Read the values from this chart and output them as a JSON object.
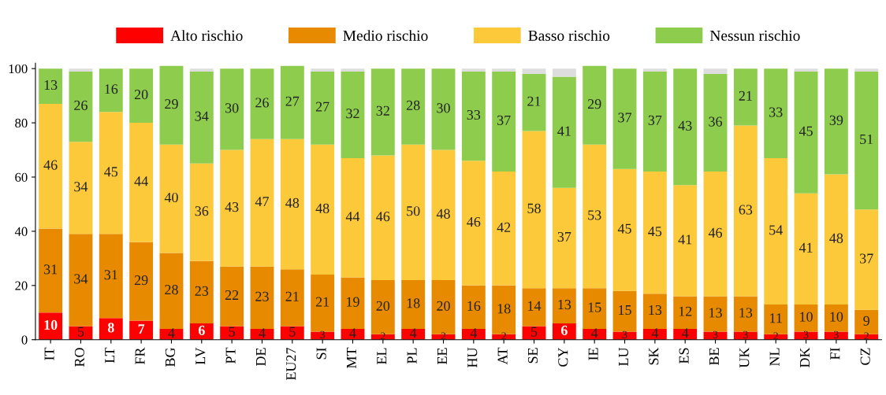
{
  "chart_data": {
    "type": "bar",
    "stacked": true,
    "data_labels": true,
    "legend": "top",
    "grid": false,
    "categories": [
      "IT",
      "RO",
      "LT",
      "FR",
      "BG",
      "LV",
      "PT",
      "DE",
      "EU27",
      "SI",
      "MT",
      "EL",
      "PL",
      "EE",
      "HU",
      "AT",
      "SE",
      "CY",
      "IE",
      "LU",
      "SK",
      "ES",
      "BE",
      "UK",
      "NL",
      "DK",
      "FI",
      "CZ"
    ],
    "ylim": [
      0,
      102
    ],
    "yticks": [
      0,
      20,
      40,
      60,
      80,
      100
    ],
    "series": [
      {
        "name": "Alto rischio",
        "color": "#ff0000",
        "values": [
          10,
          5,
          8,
          7,
          4,
          6,
          5,
          4,
          5,
          3,
          4,
          2,
          4,
          2,
          4,
          2,
          5,
          6,
          4,
          3,
          4,
          4,
          3,
          3,
          2,
          3,
          3,
          2
        ]
      },
      {
        "name": "Medio rischio",
        "color": "#e88a00",
        "values": [
          31,
          34,
          31,
          29,
          28,
          23,
          22,
          23,
          21,
          21,
          19,
          20,
          18,
          20,
          16,
          18,
          14,
          13,
          15,
          15,
          13,
          12,
          13,
          13,
          11,
          10,
          10,
          9
        ]
      },
      {
        "name": "Basso rischio",
        "color": "#fcc93a",
        "values": [
          46,
          34,
          45,
          44,
          40,
          36,
          43,
          47,
          48,
          48,
          44,
          46,
          50,
          48,
          46,
          42,
          58,
          37,
          53,
          45,
          45,
          41,
          46,
          63,
          54,
          41,
          48,
          37
        ]
      },
      {
        "name": "Nessun rischio",
        "color": "#8dcc4c",
        "values": [
          13,
          26,
          16,
          20,
          29,
          34,
          30,
          26,
          27,
          27,
          32,
          32,
          28,
          30,
          33,
          37,
          21,
          41,
          29,
          37,
          37,
          43,
          36,
          21,
          33,
          45,
          39,
          51
        ]
      },
      {
        "color": "#dddddd",
        "values": [
          null,
          1,
          null,
          null,
          null,
          1,
          null,
          null,
          null,
          1,
          1,
          null,
          null,
          null,
          1,
          1,
          2,
          3,
          null,
          null,
          1,
          null,
          2,
          null,
          null,
          1,
          null,
          1
        ],
        "value_labels": [
          null,
          null,
          null,
          null,
          null,
          null,
          null,
          null,
          null,
          null,
          null,
          null,
          null,
          null,
          null,
          null,
          null,
          null,
          null,
          null,
          null,
          null,
          null,
          null,
          null,
          null,
          null,
          null
        ]
      }
    ]
  }
}
